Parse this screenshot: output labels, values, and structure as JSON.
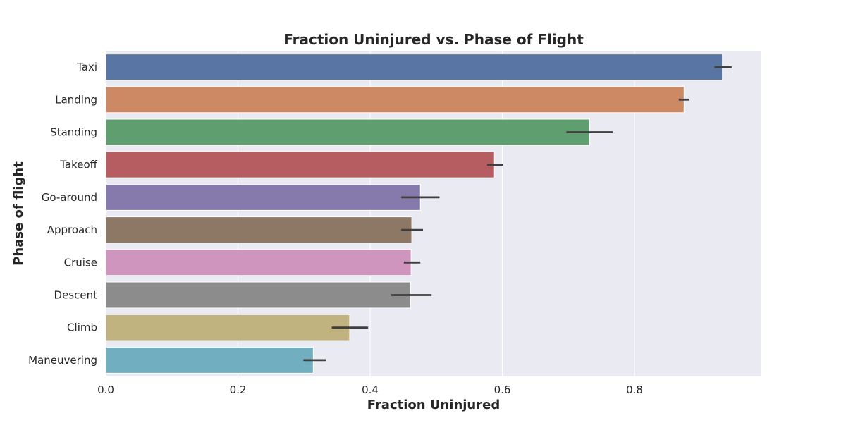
{
  "chart_data": {
    "type": "bar",
    "orientation": "horizontal",
    "title": "Fraction Uninjured vs. Phase of Flight",
    "xlabel": "Fraction Uninjured",
    "ylabel": "Phase of flight",
    "xlim": [
      0,
      0.992
    ],
    "xticks": [
      0.0,
      0.2,
      0.4,
      0.6,
      0.8
    ],
    "xtick_labels": [
      "0.0",
      "0.2",
      "0.4",
      "0.6",
      "0.8"
    ],
    "grid": true,
    "categories": [
      "Taxi",
      "Landing",
      "Standing",
      "Takeoff",
      "Go-around",
      "Approach",
      "Cruise",
      "Descent",
      "Climb",
      "Maneuvering"
    ],
    "values": [
      0.933,
      0.875,
      0.732,
      0.588,
      0.476,
      0.463,
      0.462,
      0.461,
      0.369,
      0.314
    ],
    "error_low": [
      0.921,
      0.867,
      0.697,
      0.577,
      0.447,
      0.447,
      0.451,
      0.432,
      0.342,
      0.299
    ],
    "error_high": [
      0.947,
      0.883,
      0.767,
      0.601,
      0.505,
      0.48,
      0.476,
      0.493,
      0.397,
      0.333
    ],
    "colors": [
      "#5875a4",
      "#cc8963",
      "#5f9e6e",
      "#b55d60",
      "#857aab",
      "#8d7866",
      "#d095bf",
      "#8c8c8c",
      "#c1b37f",
      "#71aec0"
    ],
    "background_color": "#eaeaf2",
    "grid_color": "#ffffff",
    "errorbar_color": "#3f3f3f"
  }
}
